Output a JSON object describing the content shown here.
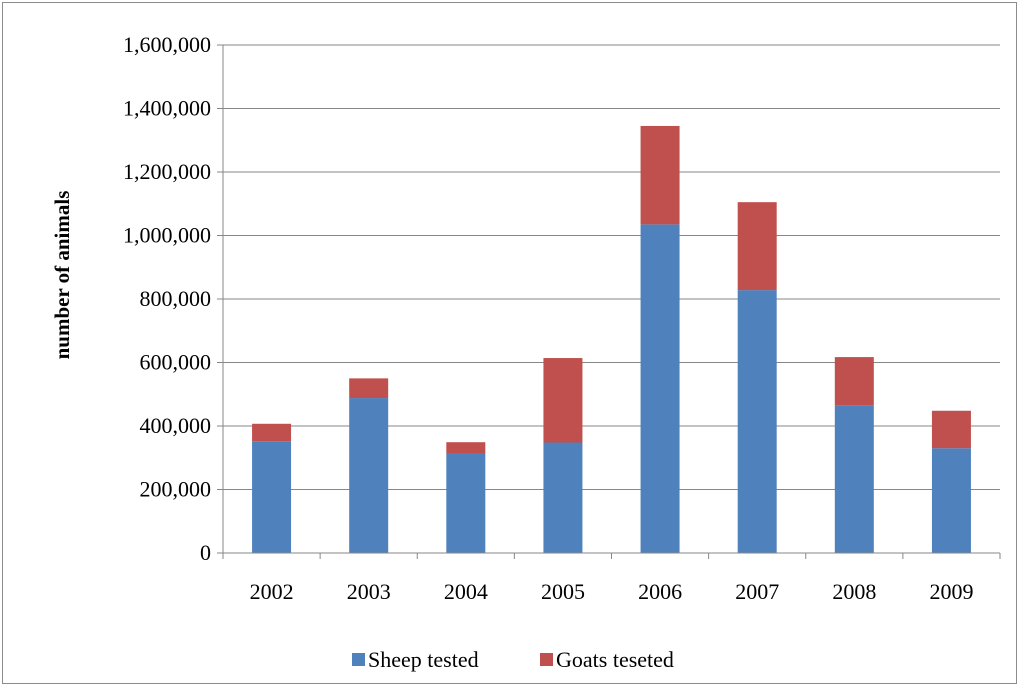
{
  "chart_data": {
    "type": "bar",
    "stacked": true,
    "title": "",
    "xlabel": "",
    "ylabel": "number of animals",
    "ylim": [
      0,
      1600000
    ],
    "yticks": [
      0,
      200000,
      400000,
      600000,
      800000,
      1000000,
      1200000,
      1400000,
      1600000
    ],
    "ytick_labels": [
      "0",
      "200,000",
      "400,000",
      "600,000",
      "800,000",
      "1,000,000",
      "1,200,000",
      "1,400,000",
      "1,600,000"
    ],
    "categories": [
      "2002",
      "2003",
      "2004",
      "2005",
      "2006",
      "2007",
      "2008",
      "2009"
    ],
    "series": [
      {
        "name": "Sheep tested",
        "color": "#4f81bd",
        "values": [
          352000,
          488000,
          312000,
          348000,
          1035000,
          828000,
          465000,
          330000
        ]
      },
      {
        "name": "Goats teseted",
        "color": "#c0504d",
        "values": [
          55000,
          62000,
          37000,
          266000,
          310000,
          277000,
          152000,
          118000
        ]
      }
    ],
    "grid": "horizontal",
    "legend": "bottom"
  }
}
